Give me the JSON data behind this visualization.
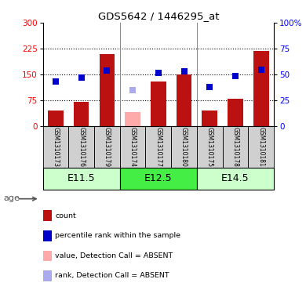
{
  "title": "GDS5642 / 1446295_at",
  "samples": [
    "GSM1310173",
    "GSM1310176",
    "GSM1310179",
    "GSM1310174",
    "GSM1310177",
    "GSM1310180",
    "GSM1310175",
    "GSM1310178",
    "GSM1310181"
  ],
  "counts": [
    45,
    70,
    210,
    0,
    130,
    150,
    45,
    80,
    220
  ],
  "absent_counts": [
    0,
    0,
    0,
    40,
    0,
    0,
    0,
    0,
    0
  ],
  "percentile_ranks": [
    43,
    47,
    54,
    0,
    52,
    53,
    38,
    49,
    55
  ],
  "absent_ranks": [
    0,
    0,
    0,
    35,
    0,
    0,
    0,
    0,
    0
  ],
  "is_absent": [
    false,
    false,
    false,
    true,
    false,
    false,
    false,
    false,
    false
  ],
  "groups": [
    {
      "label": "E11.5",
      "start": 0,
      "end": 3
    },
    {
      "label": "E12.5",
      "start": 3,
      "end": 6
    },
    {
      "label": "E14.5",
      "start": 6,
      "end": 9
    }
  ],
  "ylim_left": [
    0,
    300
  ],
  "ylim_right": [
    0,
    100
  ],
  "yticks_left": [
    0,
    75,
    150,
    225,
    300
  ],
  "yticks_right": [
    0,
    25,
    50,
    75,
    100
  ],
  "ytick_labels_left": [
    "0",
    "75",
    "150",
    "225",
    "300"
  ],
  "ytick_labels_right": [
    "0",
    "25",
    "50",
    "75",
    "100%"
  ],
  "bar_color_present": "#bb1111",
  "bar_color_absent": "#ffaaaa",
  "dot_color_present": "#0000cc",
  "dot_color_absent": "#aaaaee",
  "group_colors": [
    "#ccffcc",
    "#44ee44",
    "#ccffcc"
  ],
  "group_border_color": "#000000",
  "label_bg_color": "#d0d0d0",
  "age_label": "age",
  "legend_items": [
    {
      "label": "count",
      "color": "#bb1111"
    },
    {
      "label": "percentile rank within the sample",
      "color": "#0000cc"
    },
    {
      "label": "value, Detection Call = ABSENT",
      "color": "#ffaaaa"
    },
    {
      "label": "rank, Detection Call = ABSENT",
      "color": "#aaaaee"
    }
  ]
}
